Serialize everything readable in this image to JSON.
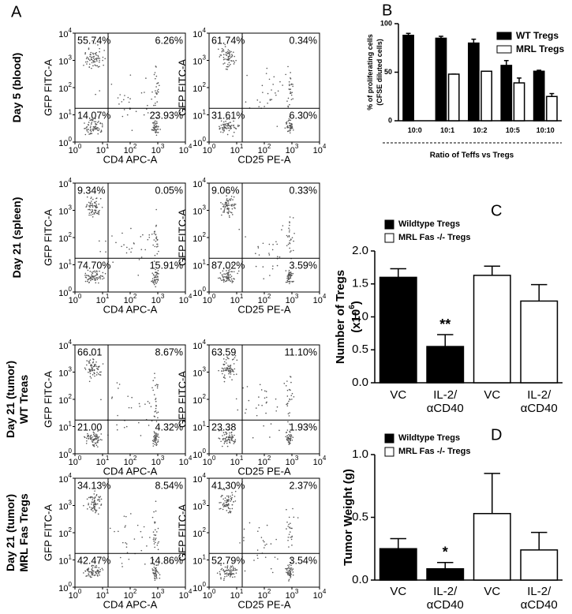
{
  "panel_labels": [
    "A",
    "B",
    "C",
    "D"
  ],
  "flow_rows": [
    {
      "label_lines": [
        "Day 5 (blood)"
      ],
      "plots": [
        {
          "ylabel": "GFP FITC-A",
          "xlabel": "CD4 APC-A",
          "quadrants": [
            "55.74%",
            "6.26%",
            "14.07%",
            "23.93%"
          ]
        },
        {
          "ylabel": "GFP FITC-A",
          "xlabel": "CD25 PE-A",
          "quadrants": [
            "61.74%",
            "0.34%",
            "31.61%",
            "6.30%"
          ]
        }
      ]
    },
    {
      "label_lines": [
        "Day 21 (spleen)"
      ],
      "plots": [
        {
          "ylabel": "GFP FITC-A",
          "xlabel": "CD4 APC-A",
          "quadrants": [
            "9.34%",
            "0.05%",
            "74.70%",
            "15.91%"
          ]
        },
        {
          "ylabel": "GFP FITC-A",
          "xlabel": "CD25 PE-A",
          "quadrants": [
            "9.06%",
            "0.33%",
            "87.02%",
            "3.59%"
          ]
        }
      ]
    },
    {
      "label_lines": [
        "Day 21 (tumor)",
        "WT Treas"
      ],
      "plots": [
        {
          "ylabel": "GFP FITC-A",
          "xlabel": "CD4 APC-A",
          "quadrants": [
            "66.01",
            "8.67%",
            "21.00",
            "4.32%"
          ]
        },
        {
          "ylabel": "GFP FITC-A",
          "xlabel": "CD25 PE-A",
          "quadrants": [
            "63.59",
            "11.10%",
            "23.38",
            "1.93%"
          ]
        }
      ]
    },
    {
      "label_lines": [
        "Day 21 (tumor)",
        "MRL Fas Tregs"
      ],
      "plots": [
        {
          "ylabel": "GFP FITC-A",
          "xlabel": "CD4 APC-A",
          "quadrants": [
            "34.13%",
            "8.54%",
            "42.47%",
            "14.86%"
          ]
        },
        {
          "ylabel": "GFP FITC-A",
          "xlabel": "CD25 PE-A",
          "quadrants": [
            "41.30%",
            "2.37%",
            "52.79%",
            "3.54%"
          ]
        }
      ]
    }
  ],
  "flow_axis": {
    "lim": [
      1,
      10000
    ],
    "log": true,
    "ticks": [
      {
        "value": 1,
        "label": "10",
        "sup": "0"
      },
      {
        "value": 10,
        "label": "10",
        "sup": "1"
      },
      {
        "value": 100,
        "label": "10",
        "sup": "2"
      },
      {
        "value": 1000,
        "label": "10",
        "sup": "3"
      },
      {
        "value": 10000,
        "label": "10",
        "sup": "4"
      }
    ]
  },
  "chart_data": [
    {
      "type": "bar",
      "ylabel_lines": [
        "% of proliferating cells",
        "(CFSE diluted cells)"
      ],
      "xlabel": "Ratio of Teffs vs Tregs",
      "categories": [
        [
          "10:0"
        ],
        [
          "10:1"
        ],
        [
          "10:2"
        ],
        [
          "10:5"
        ],
        [
          "10:10"
        ]
      ],
      "series": [
        {
          "name": "WT Tregs",
          "color": "#000000",
          "values": [
            88,
            85,
            80,
            57,
            51
          ],
          "errors": [
            2,
            2,
            4,
            5,
            1
          ]
        },
        {
          "name": "MRL Tregs",
          "color": "#ffffff",
          "values": [
            null,
            48,
            51,
            39,
            25
          ],
          "errors": [
            null,
            0,
            0,
            5,
            3
          ]
        }
      ],
      "ylim": [
        0,
        100
      ],
      "yticks": [
        0,
        50,
        100
      ]
    },
    {
      "type": "bar",
      "ylabel_lines": [
        "Number of Tregs"
      ],
      "ylabel_unit": {
        "text": "(x10",
        "sup": "6",
        "end": ")"
      },
      "categories": [
        [
          "VC"
        ],
        [
          "IL-2/",
          "αCD40"
        ],
        [
          "VC"
        ],
        [
          "IL-2/",
          "αCD40"
        ]
      ],
      "series": [
        {
          "name": "Wildtype Tregs",
          "color": "#000000",
          "values": [
            1.6,
            0.55,
            null,
            null
          ],
          "errors": [
            0.13,
            0.18,
            null,
            null
          ]
        },
        {
          "name": "MRL Fas -/- Tregs",
          "color": "#ffffff",
          "values": [
            null,
            null,
            1.63,
            1.24
          ],
          "errors": [
            null,
            null,
            0.14,
            0.25
          ]
        }
      ],
      "annotation": "**",
      "ylim": [
        0,
        2.0
      ],
      "yticks": [
        {
          "value": 0,
          "label": "0.0"
        },
        {
          "value": 0.5,
          "label": "0.5"
        },
        {
          "value": 1,
          "label": "1.0"
        },
        {
          "value": 1.5,
          "label": "1.5"
        },
        {
          "value": 2,
          "label": "2.0"
        }
      ]
    },
    {
      "type": "bar",
      "ylabel_lines": [
        "Tumor Weight (g)"
      ],
      "categories": [
        [
          "VC"
        ],
        [
          "IL-2/",
          "αCD40"
        ],
        [
          "VC"
        ],
        [
          "IL-2/",
          "αCD40"
        ]
      ],
      "series": [
        {
          "name": "Wildtype Tregs",
          "color": "#000000",
          "values": [
            0.25,
            0.09,
            null,
            null
          ],
          "errors": [
            0.08,
            0.05,
            null,
            null
          ]
        },
        {
          "name": "MRL Fas -/- Tregs",
          "color": "#ffffff",
          "values": [
            null,
            null,
            0.53,
            0.24
          ],
          "errors": [
            null,
            null,
            0.32,
            0.14
          ]
        }
      ],
      "annotation": "*",
      "ylim": [
        0,
        1.0
      ],
      "yticks": [
        {
          "value": 0,
          "label": "0.0"
        },
        {
          "value": 0.5,
          "label": "0.5"
        },
        {
          "value": 1,
          "label": "1.0"
        }
      ]
    }
  ]
}
